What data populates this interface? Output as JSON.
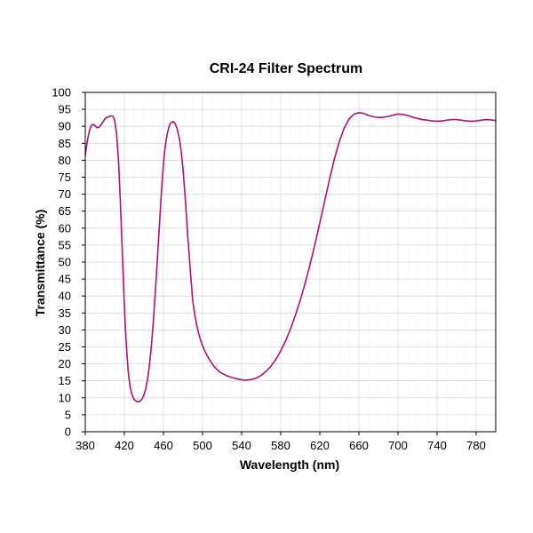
{
  "chart_data": {
    "type": "line",
    "title": "CRI-24 Filter Spectrum",
    "xlabel": "Wavelength (nm)",
    "ylabel": "Transmittance (%)",
    "xlim": [
      380,
      800
    ],
    "ylim": [
      0,
      100
    ],
    "x_ticks": [
      380,
      420,
      460,
      500,
      540,
      580,
      620,
      660,
      700,
      740,
      780
    ],
    "y_ticks": [
      0,
      5,
      10,
      15,
      20,
      25,
      30,
      35,
      40,
      45,
      50,
      55,
      60,
      65,
      70,
      75,
      80,
      85,
      90,
      95,
      100
    ],
    "grid": true,
    "legend": "none",
    "series": [
      {
        "color": "#b0107a",
        "x": [
          380,
          382,
          384,
          386,
          388,
          390,
          392,
          394,
          396,
          398,
          400,
          402,
          404,
          406,
          408,
          409,
          410,
          412,
          414,
          416,
          418,
          420,
          422,
          424,
          426,
          428,
          430,
          432,
          434,
          436,
          438,
          440,
          442,
          444,
          446,
          448,
          450,
          452,
          454,
          456,
          458,
          460,
          462,
          464,
          466,
          468,
          470,
          472,
          474,
          476,
          478,
          480,
          482,
          484,
          485,
          486,
          487,
          488,
          489,
          490,
          492,
          494,
          496,
          498,
          500,
          502,
          504,
          506,
          508,
          510,
          512,
          514,
          516,
          518,
          520,
          525,
          530,
          535,
          540,
          545,
          550,
          555,
          560,
          565,
          570,
          575,
          580,
          585,
          590,
          595,
          600,
          605,
          610,
          615,
          620,
          625,
          630,
          635,
          640,
          645,
          650,
          655,
          660,
          665,
          670,
          675,
          680,
          685,
          690,
          695,
          700,
          705,
          710,
          715,
          720,
          725,
          730,
          735,
          740,
          745,
          750,
          755,
          760,
          765,
          770,
          775,
          780,
          785,
          790,
          795,
          800
        ],
        "y": [
          81.5,
          85.5,
          88.5,
          90.2,
          90.6,
          90.2,
          89.6,
          89.7,
          90.4,
          91.2,
          92.2,
          92.6,
          92.8,
          93.1,
          93.0,
          92.7,
          91.8,
          88.0,
          80.0,
          67.0,
          52.0,
          37.0,
          25.5,
          17.5,
          13.0,
          10.8,
          9.5,
          9.0,
          8.8,
          9.0,
          9.6,
          10.8,
          12.8,
          16.0,
          20.5,
          26.5,
          34.0,
          42.5,
          52.0,
          61.5,
          71.0,
          79.0,
          84.5,
          88.0,
          90.2,
          91.2,
          91.4,
          90.8,
          89.3,
          86.8,
          83.0,
          77.5,
          70.0,
          61.5,
          57.0,
          53.5,
          49.5,
          45.5,
          42.0,
          38.5,
          34.5,
          31.5,
          29.0,
          27.0,
          25.4,
          24.0,
          22.8,
          21.8,
          20.8,
          20.0,
          19.2,
          18.6,
          18.0,
          17.5,
          17.2,
          16.5,
          16.0,
          15.6,
          15.3,
          15.2,
          15.4,
          15.8,
          16.6,
          17.8,
          19.3,
          21.3,
          23.8,
          26.8,
          30.3,
          34.3,
          38.8,
          43.8,
          49.3,
          55.3,
          61.5,
          68.0,
          74.5,
          80.5,
          85.5,
          89.5,
          92.2,
          93.6,
          94.0,
          93.8,
          93.2,
          92.8,
          92.6,
          92.7,
          92.9,
          93.3,
          93.6,
          93.5,
          93.2,
          92.7,
          92.3,
          92.0,
          91.8,
          91.6,
          91.5,
          91.6,
          91.8,
          92.0,
          92.0,
          91.8,
          91.6,
          91.5,
          91.6,
          91.8,
          92.0,
          91.9,
          91.7
        ]
      }
    ]
  }
}
